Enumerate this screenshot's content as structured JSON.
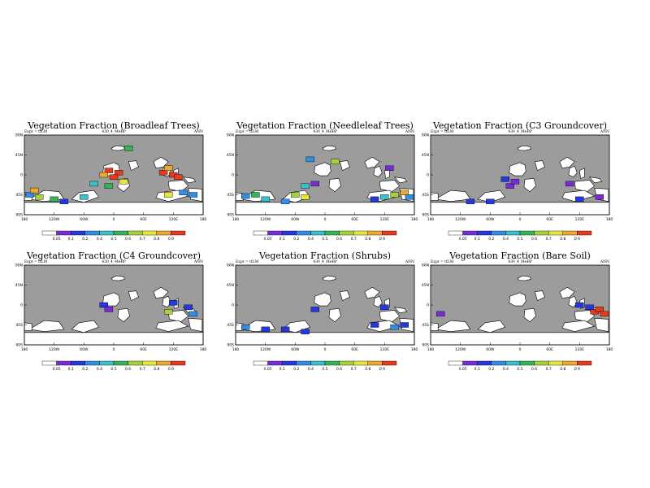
{
  "colors": {
    "ocean": "#9c9c9c",
    "land": "#ffffff",
    "bins": [
      "#ffffff",
      "#7a2ad8",
      "#2438e0",
      "#2f8ee6",
      "#38c0cc",
      "#34b45a",
      "#a6d33a",
      "#e8e63a",
      "#f0a830",
      "#e83a1c"
    ]
  },
  "chart_data": [
    {
      "type": "heatmap",
      "title": "Vegetation Fraction (Broadleaf Trees)",
      "expt_label": "Expt = tfLM",
      "case_label": "430_4_MeBP",
      "season": "ANN",
      "lat_ticks": [
        "90N",
        "45N",
        "0",
        "45S",
        "90S"
      ],
      "lon_ticks": [
        "180",
        "120W",
        "60W",
        "0",
        "60E",
        "120E",
        "180"
      ],
      "colorbar_labels": [
        "0.05",
        "0.1",
        "0.2",
        "0.4",
        "0.5",
        "0.6",
        "0.7",
        "0.8",
        "0.9"
      ],
      "cells": [
        {
          "lon": -10,
          "lat": 10,
          "bin": 9
        },
        {
          "lon": 10,
          "lat": 5,
          "bin": 9
        },
        {
          "lon": 0,
          "lat": -5,
          "bin": 9
        },
        {
          "lon": -20,
          "lat": 0,
          "bin": 8
        },
        {
          "lon": 100,
          "lat": 5,
          "bin": 9
        },
        {
          "lon": 120,
          "lat": 0,
          "bin": 9
        },
        {
          "lon": 130,
          "lat": -5,
          "bin": 9
        },
        {
          "lon": 110,
          "lat": 15,
          "bin": 8
        },
        {
          "lon": 20,
          "lat": -15,
          "bin": 7
        },
        {
          "lon": -10,
          "lat": -25,
          "bin": 5
        },
        {
          "lon": -40,
          "lat": -20,
          "bin": 4
        },
        {
          "lon": -60,
          "lat": -50,
          "bin": 4
        },
        {
          "lon": -150,
          "lat": -50,
          "bin": 6
        },
        {
          "lon": -170,
          "lat": -45,
          "bin": 3
        },
        {
          "lon": -120,
          "lat": -55,
          "bin": 5
        },
        {
          "lon": 110,
          "lat": -45,
          "bin": 7
        },
        {
          "lon": 140,
          "lat": -40,
          "bin": 3
        },
        {
          "lon": 160,
          "lat": -45,
          "bin": 3
        },
        {
          "lon": -160,
          "lat": -35,
          "bin": 8
        },
        {
          "lon": -100,
          "lat": -60,
          "bin": 2
        },
        {
          "lon": 30,
          "lat": 60,
          "bin": 5
        }
      ]
    },
    {
      "type": "heatmap",
      "title": "Vegetation Fraction (Needleleaf Trees)",
      "expt_label": "Expt = tfLM",
      "case_label": "430_4_MeBP",
      "season": "ANN",
      "lat_ticks": [
        "90N",
        "45N",
        "0",
        "45S",
        "90S"
      ],
      "lon_ticks": [
        "180",
        "120W",
        "60W",
        "0",
        "60E",
        "120E",
        "180"
      ],
      "colorbar_labels": [
        "0.05",
        "0.1",
        "0.2",
        "0.4",
        "0.5",
        "0.6",
        "0.7",
        "0.8",
        "0.9"
      ],
      "cells": [
        {
          "lon": -140,
          "lat": -45,
          "bin": 5
        },
        {
          "lon": -160,
          "lat": -48,
          "bin": 3
        },
        {
          "lon": -120,
          "lat": -55,
          "bin": 4
        },
        {
          "lon": -60,
          "lat": -45,
          "bin": 6
        },
        {
          "lon": -40,
          "lat": -50,
          "bin": 7
        },
        {
          "lon": -80,
          "lat": -60,
          "bin": 3
        },
        {
          "lon": 120,
          "lat": -50,
          "bin": 4
        },
        {
          "lon": 140,
          "lat": -45,
          "bin": 6
        },
        {
          "lon": 160,
          "lat": -40,
          "bin": 8
        },
        {
          "lon": 170,
          "lat": -50,
          "bin": 3
        },
        {
          "lon": 100,
          "lat": -55,
          "bin": 2
        },
        {
          "lon": -20,
          "lat": -20,
          "bin": 1
        },
        {
          "lon": 20,
          "lat": 30,
          "bin": 6
        },
        {
          "lon": -30,
          "lat": 35,
          "bin": 3
        },
        {
          "lon": 130,
          "lat": 15,
          "bin": 1
        },
        {
          "lon": -40,
          "lat": -25,
          "bin": 4
        }
      ]
    },
    {
      "type": "heatmap",
      "title": "Vegetation Fraction (C3 Groundcover)",
      "expt_label": "Expt = tfLM",
      "case_label": "430_4_MeBP",
      "season": "ANN",
      "lat_ticks": [
        "90N",
        "45N",
        "0",
        "45S",
        "90S"
      ],
      "lon_ticks": [
        "180",
        "120W",
        "60W",
        "0",
        "60E",
        "120E",
        "180"
      ],
      "colorbar_labels": [
        "0.05",
        "0.1",
        "0.2",
        "0.4",
        "0.5",
        "0.6",
        "0.7",
        "0.8",
        "0.9"
      ],
      "cells": [
        {
          "lon": -20,
          "lat": -25,
          "bin": 1
        },
        {
          "lon": -10,
          "lat": -15,
          "bin": 1
        },
        {
          "lon": -30,
          "lat": -10,
          "bin": 2
        },
        {
          "lon": 100,
          "lat": -20,
          "bin": 1
        },
        {
          "lon": 120,
          "lat": -55,
          "bin": 2
        },
        {
          "lon": -100,
          "lat": -60,
          "bin": 2
        },
        {
          "lon": -60,
          "lat": -60,
          "bin": 2
        },
        {
          "lon": 160,
          "lat": -50,
          "bin": 1
        }
      ]
    },
    {
      "type": "heatmap",
      "title": "Vegetation Fraction (C4 Groundcover)",
      "expt_label": "Expt = tfLM",
      "case_label": "430_4_MeBP",
      "season": "ANN",
      "lat_ticks": [
        "90N",
        "45N",
        "0",
        "45S",
        "90S"
      ],
      "lon_ticks": [
        "180",
        "120W",
        "60W",
        "0",
        "60E",
        "120E",
        "180"
      ],
      "colorbar_labels": [
        "0.05",
        "0.1",
        "0.2",
        "0.4",
        "0.5",
        "0.6",
        "0.7",
        "0.8",
        "0.9"
      ],
      "cells": [
        {
          "lon": -20,
          "lat": 0,
          "bin": 2
        },
        {
          "lon": -10,
          "lat": -10,
          "bin": 1
        },
        {
          "lon": 120,
          "lat": 5,
          "bin": 2
        },
        {
          "lon": 110,
          "lat": -15,
          "bin": 6
        },
        {
          "lon": 150,
          "lat": -5,
          "bin": 2
        },
        {
          "lon": 160,
          "lat": -20,
          "bin": 3
        }
      ]
    },
    {
      "type": "heatmap",
      "title": "Vegetation Fraction (Shrubs)",
      "expt_label": "Expt = tfLM",
      "case_label": "430_4_MeBP",
      "season": "ANN",
      "lat_ticks": [
        "90N",
        "45N",
        "0",
        "45S",
        "90S"
      ],
      "lon_ticks": [
        "180",
        "120W",
        "60W",
        "0",
        "60E",
        "120E",
        "180"
      ],
      "colorbar_labels": [
        "0.05",
        "0.1",
        "0.2",
        "0.4",
        "0.5",
        "0.6",
        "0.7",
        "0.8",
        "0.9"
      ],
      "cells": [
        {
          "lon": -160,
          "lat": -50,
          "bin": 3
        },
        {
          "lon": -120,
          "lat": -55,
          "bin": 2
        },
        {
          "lon": -80,
          "lat": -55,
          "bin": 2
        },
        {
          "lon": -40,
          "lat": -60,
          "bin": 2
        },
        {
          "lon": 100,
          "lat": -45,
          "bin": 2
        },
        {
          "lon": 140,
          "lat": -50,
          "bin": 3
        },
        {
          "lon": 160,
          "lat": -45,
          "bin": 2
        },
        {
          "lon": -20,
          "lat": -10,
          "bin": 2
        },
        {
          "lon": 120,
          "lat": -5,
          "bin": 2
        }
      ]
    },
    {
      "type": "heatmap",
      "title": "Vegetation Fraction (Bare Soil)",
      "expt_label": "Expt = tfLM",
      "case_label": "430_4_MeBP",
      "season": "ANN",
      "lat_ticks": [
        "90N",
        "45N",
        "0",
        "45S",
        "90S"
      ],
      "lon_ticks": [
        "180",
        "120W",
        "60W",
        "0",
        "60E",
        "120E",
        "180"
      ],
      "colorbar_labels": [
        "0.05",
        "0.1",
        "0.2",
        "0.4",
        "0.5",
        "0.6",
        "0.7",
        "0.8",
        "0.9"
      ],
      "cells": [
        {
          "lon": 150,
          "lat": -15,
          "bin": 9
        },
        {
          "lon": 160,
          "lat": -10,
          "bin": 9
        },
        {
          "lon": 170,
          "lat": -20,
          "bin": 9
        },
        {
          "lon": 140,
          "lat": -5,
          "bin": 2
        },
        {
          "lon": 120,
          "lat": 0,
          "bin": 2
        },
        {
          "lon": -160,
          "lat": -20,
          "bin": 1
        }
      ]
    }
  ]
}
